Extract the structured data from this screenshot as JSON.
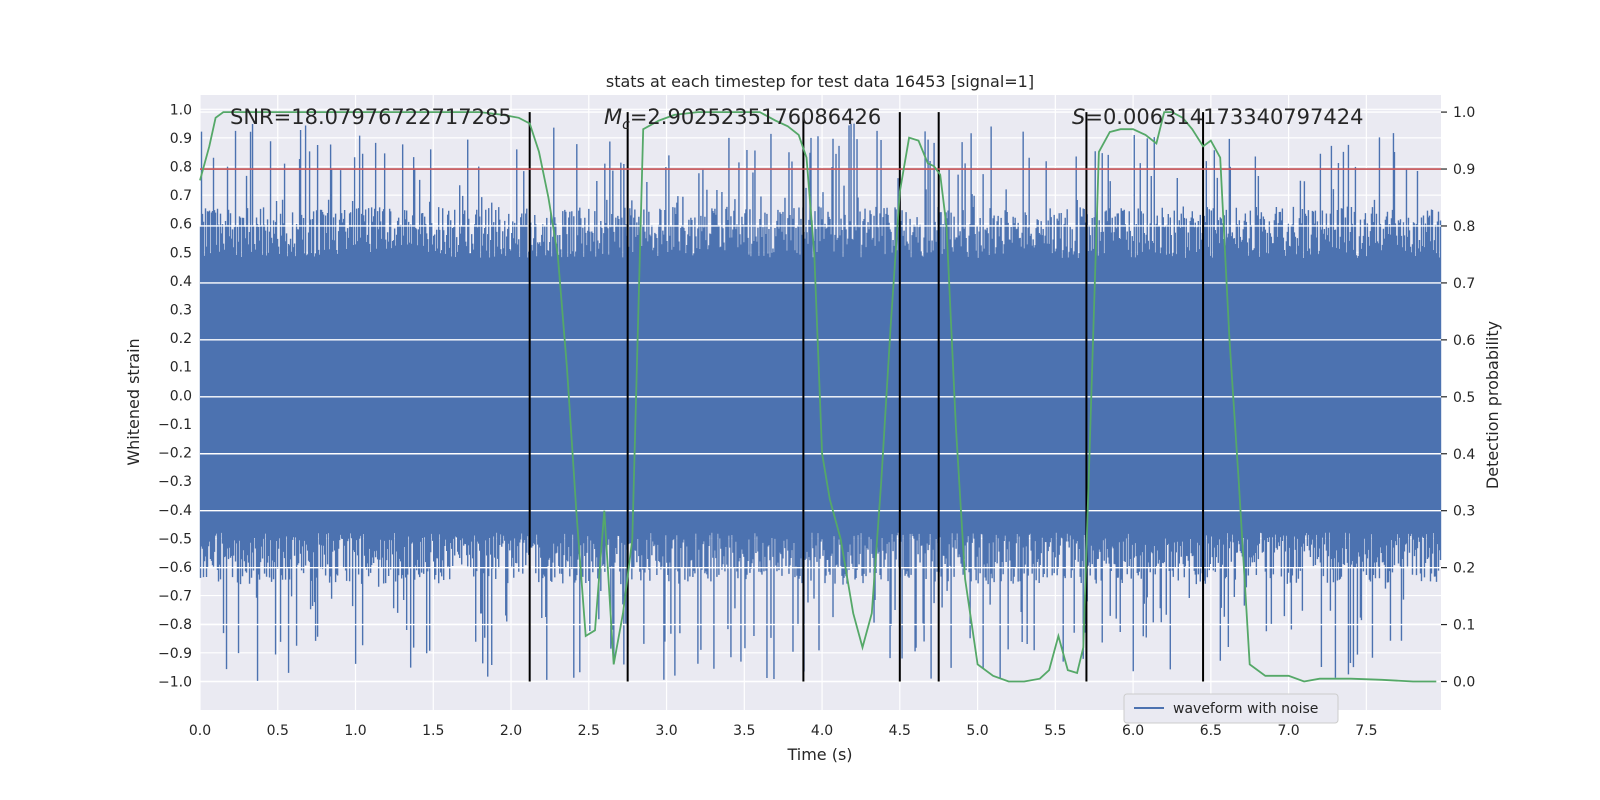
{
  "chart_data": {
    "type": "line",
    "title": "stats at each timestep for test data 16453 [signal=1]",
    "xlabel": "Time (s)",
    "ylabel": "Whitened strain",
    "ylabel_right": "Detection probability",
    "xlim": [
      0,
      7.98
    ],
    "ylim": [
      -1.1,
      1.05
    ],
    "ylim_right": [
      -0.05,
      1.03
    ],
    "x_ticks": [
      "0.0",
      "0.5",
      "1.0",
      "1.5",
      "2.0",
      "2.5",
      "3.0",
      "3.5",
      "4.0",
      "4.5",
      "5.0",
      "5.5",
      "6.0",
      "6.5",
      "7.0",
      "7.5"
    ],
    "y_ticks": [
      "1.0",
      "0.9",
      "0.8",
      "0.7",
      "0.6",
      "0.5",
      "0.4",
      "0.3",
      "0.2",
      "0.1",
      "0.0",
      "−0.1",
      "−0.2",
      "−0.3",
      "−0.4",
      "−0.5",
      "−0.6",
      "−0.7",
      "−0.8",
      "−0.9",
      "−1.0"
    ],
    "y_ticks_right": [
      "1.0",
      "0.9",
      "0.8",
      "0.7",
      "0.6",
      "0.5",
      "0.4",
      "0.3",
      "0.2",
      "0.1",
      "0.0"
    ],
    "annotations": {
      "snr": "SNR=18.07976722717285",
      "mc": "M",
      "mc_sub": "c",
      "mc_value": "=2.9025235176086426",
      "s": "S",
      "s_value": "=0.006314173340797424"
    },
    "threshold": {
      "value": 0.9,
      "axis": "right",
      "color": "#c44e52"
    },
    "vertical_markers": [
      2.12,
      2.75,
      3.88,
      4.5,
      4.75,
      5.7,
      6.45
    ],
    "series": [
      {
        "name": "waveform with noise",
        "color": "#4c72b0",
        "axis": "left",
        "description_values": {
          "core_amplitude": 0.45,
          "spike_max": 0.95,
          "spike_min": -1.0
        }
      },
      {
        "name": "detection probability",
        "color": "#55a868",
        "axis": "right",
        "x": [
          0.0,
          0.06,
          0.1,
          0.15,
          0.25,
          0.4,
          0.6,
          1.0,
          1.5,
          1.8,
          1.95,
          2.05,
          2.12,
          2.18,
          2.24,
          2.3,
          2.36,
          2.42,
          2.48,
          2.54,
          2.6,
          2.66,
          2.72,
          2.78,
          2.85,
          2.95,
          3.05,
          3.2,
          3.4,
          3.6,
          3.7,
          3.78,
          3.85,
          3.9,
          3.95,
          4.0,
          4.05,
          4.12,
          4.2,
          4.26,
          4.32,
          4.38,
          4.44,
          4.5,
          4.56,
          4.62,
          4.68,
          4.72,
          4.76,
          4.8,
          4.86,
          4.92,
          5.0,
          5.1,
          5.2,
          5.3,
          5.4,
          5.46,
          5.52,
          5.58,
          5.64,
          5.68,
          5.72,
          5.78,
          5.85,
          5.92,
          6.0,
          6.08,
          6.15,
          6.2,
          6.25,
          6.32,
          6.38,
          6.45,
          6.5,
          6.56,
          6.62,
          6.68,
          6.75,
          6.85,
          7.0,
          7.1,
          7.2,
          7.4,
          7.6,
          7.8,
          7.95
        ],
        "values": [
          0.88,
          0.94,
          0.99,
          1.0,
          1.0,
          1.0,
          1.0,
          1.0,
          1.0,
          1.0,
          0.995,
          0.99,
          0.98,
          0.93,
          0.85,
          0.75,
          0.55,
          0.3,
          0.08,
          0.09,
          0.3,
          0.03,
          0.12,
          0.25,
          0.97,
          0.985,
          0.995,
          1.0,
          1.0,
          1.0,
          0.985,
          0.975,
          0.96,
          0.92,
          0.75,
          0.4,
          0.32,
          0.25,
          0.12,
          0.06,
          0.12,
          0.35,
          0.62,
          0.86,
          0.955,
          0.95,
          0.91,
          0.905,
          0.89,
          0.8,
          0.45,
          0.18,
          0.03,
          0.01,
          0.0,
          0.0,
          0.005,
          0.02,
          0.08,
          0.02,
          0.015,
          0.06,
          0.4,
          0.93,
          0.965,
          0.97,
          0.97,
          0.96,
          0.945,
          1.0,
          1.0,
          0.99,
          0.97,
          0.94,
          0.95,
          0.92,
          0.6,
          0.35,
          0.03,
          0.01,
          0.01,
          0.0,
          0.005,
          0.005,
          0.003,
          0.0,
          0.0
        ]
      }
    ],
    "legend": {
      "label": "waveform with noise",
      "position": "lower-right"
    }
  }
}
